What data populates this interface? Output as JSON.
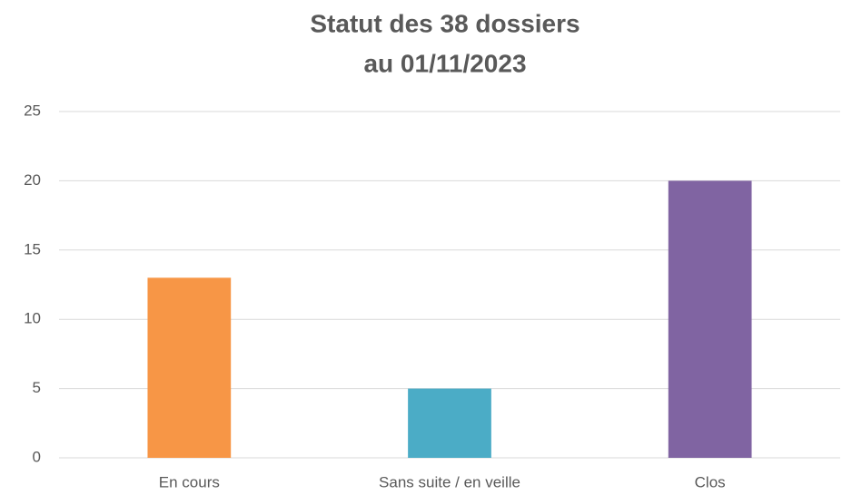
{
  "chart_data": {
    "type": "bar",
    "title": [
      "Statut des 38 dossiers",
      "au 01/11/2023"
    ],
    "categories": [
      "En cours",
      "Sans suite / en veille",
      "Clos"
    ],
    "values": [
      13,
      5,
      20
    ],
    "colors": [
      "#f79646",
      "#4bacc6",
      "#8064a2"
    ],
    "ylim": [
      0,
      25
    ],
    "yticks": [
      0,
      5,
      10,
      15,
      20,
      25
    ],
    "grid": true
  }
}
